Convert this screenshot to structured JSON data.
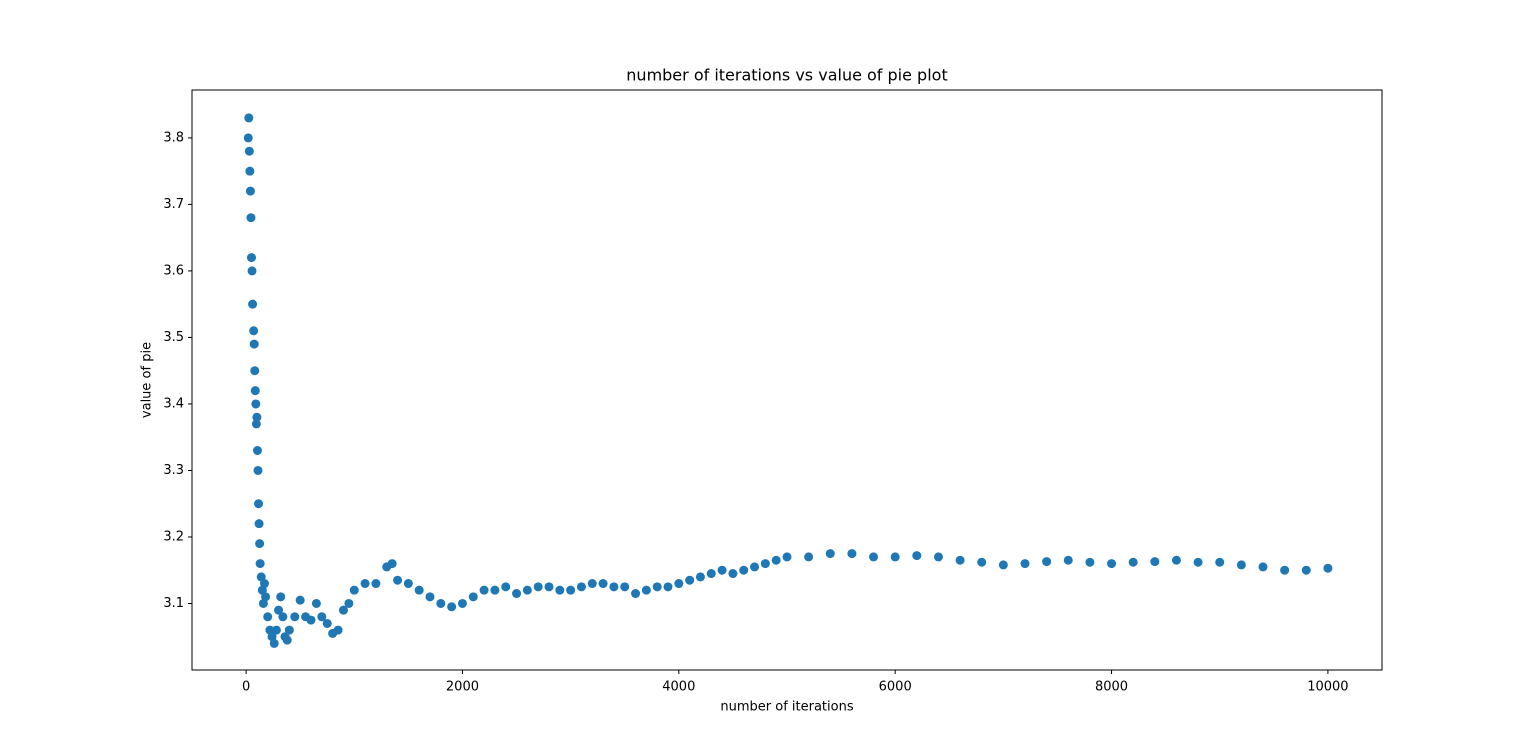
{
  "chart_data": {
    "type": "scatter",
    "title": "number of iterations vs value of pie plot",
    "x_label": "number of iterations",
    "y_label": "value of pie",
    "color": "#1f77b4",
    "grid": false,
    "xlim": [
      -500,
      10500
    ],
    "ylim": [
      3.0,
      3.872
    ],
    "xticks": [
      0,
      2000,
      4000,
      6000,
      8000,
      10000
    ],
    "yticks": [
      3.1,
      3.2,
      3.3,
      3.4,
      3.5,
      3.6,
      3.7,
      3.8
    ],
    "x": [
      20,
      25,
      30,
      35,
      40,
      45,
      50,
      55,
      60,
      70,
      75,
      80,
      85,
      90,
      95,
      100,
      105,
      110,
      115,
      120,
      125,
      130,
      140,
      150,
      160,
      170,
      180,
      200,
      220,
      240,
      260,
      280,
      300,
      320,
      340,
      360,
      380,
      400,
      450,
      500,
      550,
      600,
      650,
      700,
      750,
      800,
      850,
      900,
      950,
      1000,
      1100,
      1200,
      1300,
      1350,
      1400,
      1500,
      1600,
      1700,
      1800,
      1900,
      2000,
      2100,
      2200,
      2300,
      2400,
      2500,
      2600,
      2700,
      2800,
      2900,
      3000,
      3100,
      3200,
      3300,
      3400,
      3500,
      3600,
      3700,
      3800,
      3900,
      4000,
      4100,
      4200,
      4300,
      4400,
      4500,
      4600,
      4700,
      4800,
      4900,
      5000,
      5200,
      5400,
      5600,
      5800,
      6000,
      6200,
      6400,
      6600,
      6800,
      7000,
      7200,
      7400,
      7600,
      7800,
      8000,
      8200,
      8400,
      8600,
      8800,
      9000,
      9200,
      9400,
      9600,
      9800,
      10000
    ],
    "values": [
      3.8,
      3.83,
      3.78,
      3.75,
      3.72,
      3.68,
      3.62,
      3.6,
      3.55,
      3.51,
      3.49,
      3.45,
      3.42,
      3.4,
      3.37,
      3.38,
      3.33,
      3.3,
      3.25,
      3.22,
      3.19,
      3.16,
      3.14,
      3.12,
      3.1,
      3.13,
      3.11,
      3.08,
      3.06,
      3.05,
      3.04,
      3.06,
      3.09,
      3.11,
      3.08,
      3.05,
      3.045,
      3.06,
      3.08,
      3.105,
      3.08,
      3.075,
      3.1,
      3.08,
      3.07,
      3.055,
      3.06,
      3.09,
      3.1,
      3.12,
      3.13,
      3.13,
      3.155,
      3.16,
      3.135,
      3.13,
      3.12,
      3.11,
      3.1,
      3.095,
      3.1,
      3.11,
      3.12,
      3.12,
      3.125,
      3.115,
      3.12,
      3.125,
      3.125,
      3.12,
      3.12,
      3.125,
      3.13,
      3.13,
      3.125,
      3.125,
      3.115,
      3.12,
      3.125,
      3.125,
      3.13,
      3.135,
      3.14,
      3.145,
      3.15,
      3.145,
      3.15,
      3.155,
      3.16,
      3.165,
      3.17,
      3.17,
      3.175,
      3.175,
      3.17,
      3.17,
      3.172,
      3.17,
      3.165,
      3.162,
      3.158,
      3.16,
      3.163,
      3.165,
      3.162,
      3.16,
      3.162,
      3.163,
      3.165,
      3.162,
      3.162,
      3.158,
      3.155,
      3.15,
      3.15,
      3.153
    ]
  }
}
